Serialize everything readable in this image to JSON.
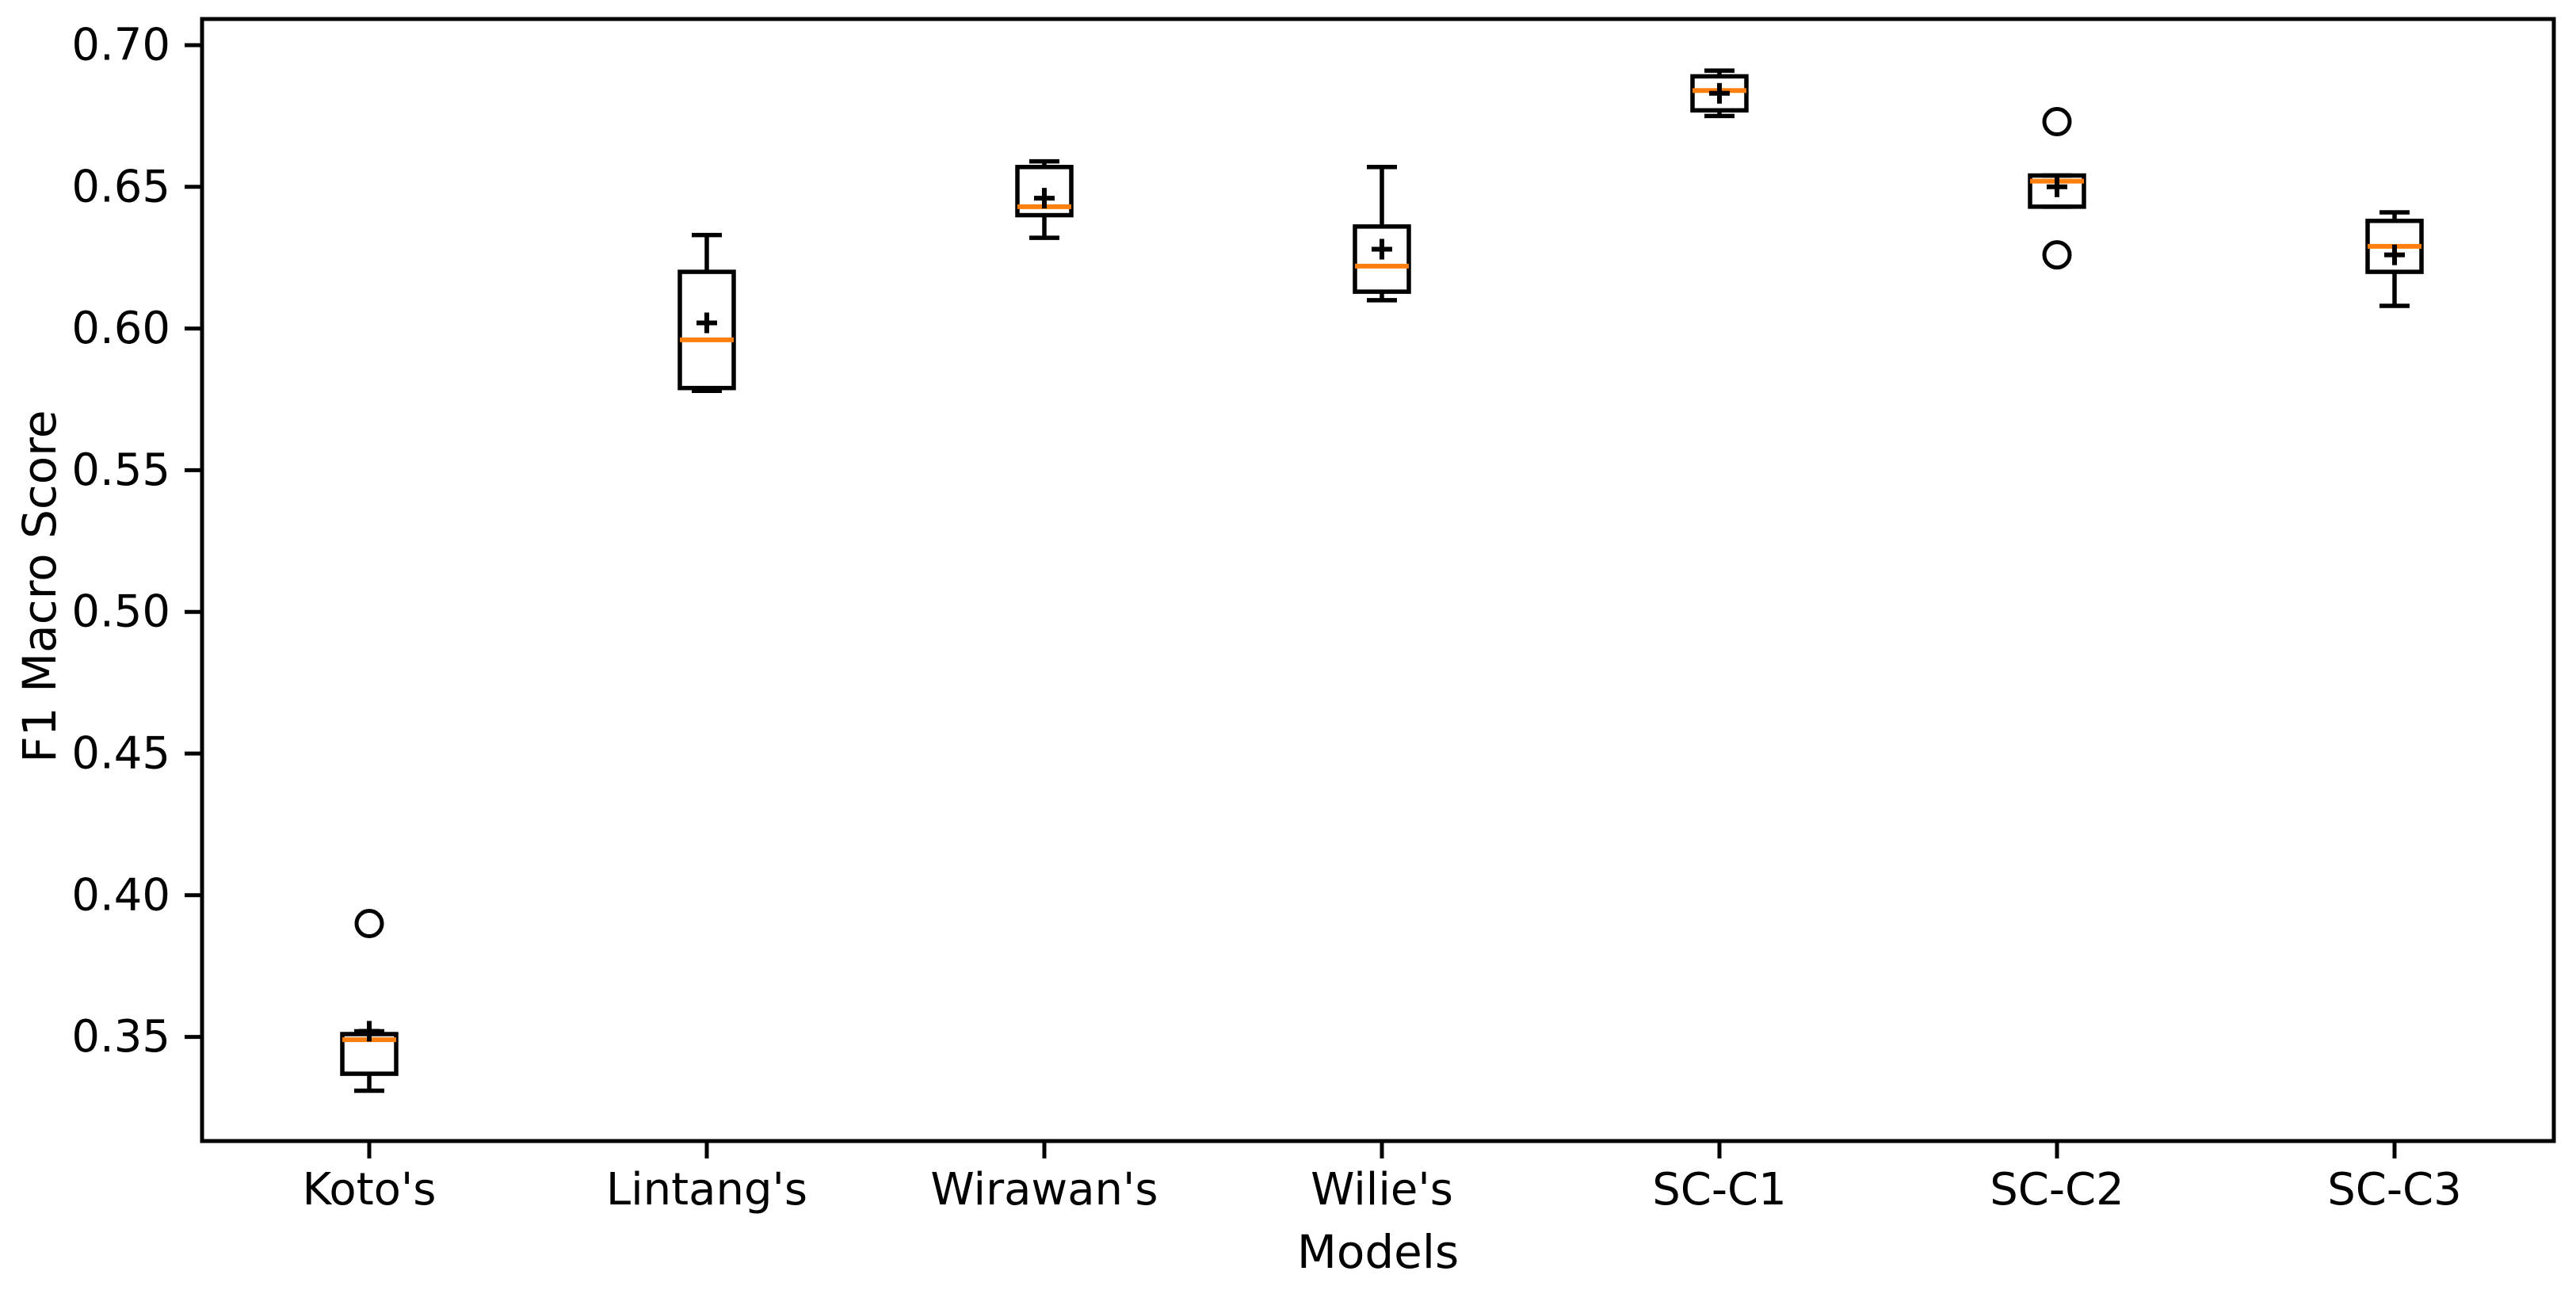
{
  "figure": {
    "xlabel": "Models",
    "ylabel": "F1 Macro Score"
  },
  "chart_data": {
    "type": "box",
    "title": "",
    "xlabel": "Models",
    "ylabel": "F1 Macro Score",
    "categories": [
      "Koto's",
      "Lintang's",
      "Wirawan's",
      "Wilie's",
      "SC-C1",
      "SC-C2",
      "SC-C3"
    ],
    "ylim": [
      0.313,
      0.709
    ],
    "yticks": [
      0.35,
      0.4,
      0.45,
      0.5,
      0.55,
      0.6,
      0.65,
      0.7
    ],
    "ytick_labels": [
      "0.35",
      "0.40",
      "0.45",
      "0.50",
      "0.55",
      "0.60",
      "0.65",
      "0.70"
    ],
    "grid": false,
    "legend": null,
    "colors": {
      "median": "#ff7f0e",
      "box_line": "#000000",
      "mean_marker": "#000000",
      "flier": "#000000",
      "background": "#ffffff"
    },
    "series": [
      {
        "name": "Koto's",
        "whislo": 0.331,
        "q1": 0.337,
        "med": 0.349,
        "q3": 0.351,
        "whishi": 0.352,
        "mean": 0.352,
        "fliers": [
          0.39
        ]
      },
      {
        "name": "Lintang's",
        "whislo": 0.578,
        "q1": 0.579,
        "med": 0.596,
        "q3": 0.62,
        "whishi": 0.633,
        "mean": 0.602,
        "fliers": []
      },
      {
        "name": "Wirawan's",
        "whislo": 0.632,
        "q1": 0.64,
        "med": 0.643,
        "q3": 0.657,
        "whishi": 0.659,
        "mean": 0.646,
        "fliers": []
      },
      {
        "name": "Wilie's",
        "whislo": 0.61,
        "q1": 0.613,
        "med": 0.622,
        "q3": 0.636,
        "whishi": 0.657,
        "mean": 0.628,
        "fliers": []
      },
      {
        "name": "SC-C1",
        "whislo": 0.675,
        "q1": 0.677,
        "med": 0.684,
        "q3": 0.689,
        "whishi": 0.691,
        "mean": 0.683,
        "fliers": []
      },
      {
        "name": "SC-C2",
        "whislo": 0.643,
        "q1": 0.643,
        "med": 0.652,
        "q3": 0.654,
        "whishi": 0.654,
        "mean": 0.65,
        "fliers": [
          0.673,
          0.626
        ]
      },
      {
        "name": "SC-C3",
        "whislo": 0.608,
        "q1": 0.62,
        "med": 0.629,
        "q3": 0.638,
        "whishi": 0.641,
        "mean": 0.626,
        "fliers": []
      }
    ]
  }
}
